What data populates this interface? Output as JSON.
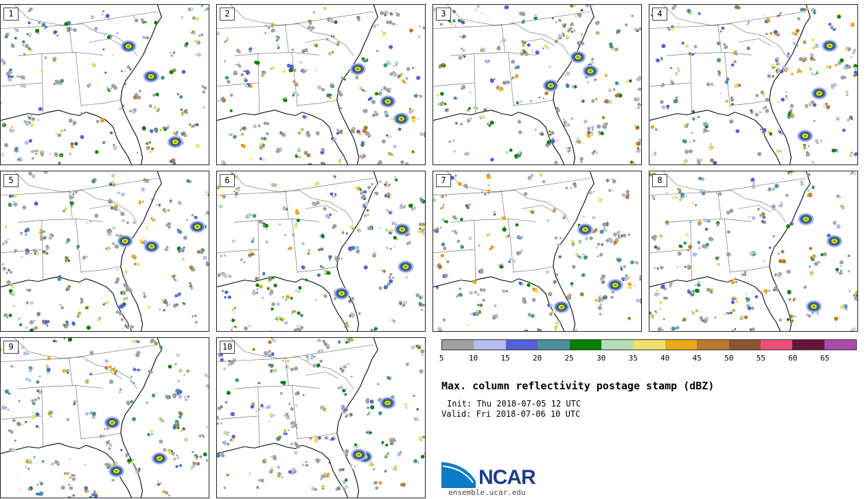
{
  "panels": [
    {
      "label": "1"
    },
    {
      "label": "2"
    },
    {
      "label": "3"
    },
    {
      "label": "4"
    },
    {
      "label": "5"
    },
    {
      "label": "6"
    },
    {
      "label": "7"
    },
    {
      "label": "8"
    },
    {
      "label": "9"
    },
    {
      "label": "10"
    }
  ],
  "legend": {
    "colors": [
      "#a0a0a0",
      "#b4bdec",
      "#5561d6",
      "#4b9099",
      "#007f00",
      "#b6dcb6",
      "#ede06c",
      "#eaa816",
      "#b87a2e",
      "#8a5530",
      "#ec4f7a",
      "#66163a",
      "#a94aa8"
    ],
    "ticks": [
      "5",
      "10",
      "15",
      "20",
      "25",
      "30",
      "35",
      "40",
      "45",
      "50",
      "55",
      "60",
      "65"
    ]
  },
  "title": "Max. column reflectivity postage stamp (dBZ)",
  "init": "Init: Thu 2018-07-05 12 UTC",
  "valid": "Valid: Fri 2018-07-06 10 UTC",
  "logo": {
    "name": "NCAR",
    "url": "ensemble.ucar.edu"
  },
  "map_colors": {
    "coast": "#000000",
    "states": "#777777",
    "bg": "#ffffff"
  }
}
